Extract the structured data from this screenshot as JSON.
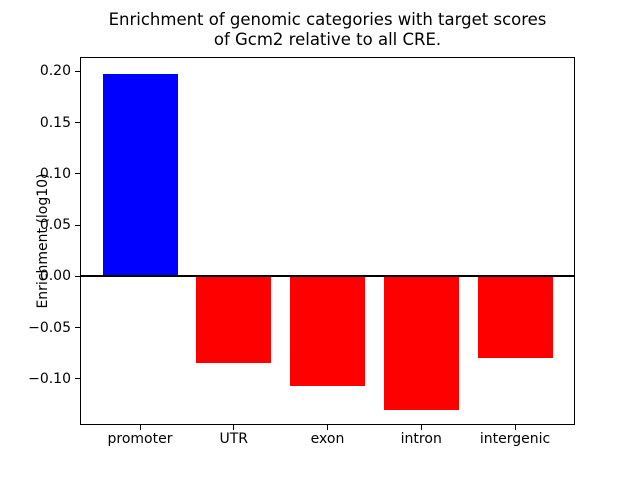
{
  "title": {
    "line1": "Enrichment of genomic categories with target scores",
    "line2": "of Gcm2 relative to all CRE."
  },
  "chart_data": {
    "type": "bar",
    "title": "Enrichment of genomic categories with target scores\nof Gcm2 relative to all CRE.",
    "xlabel": "",
    "ylabel": "Enrichment (log10)",
    "categories": [
      "promoter",
      "UTR",
      "exon",
      "intron",
      "intergenic"
    ],
    "values": [
      0.197,
      -0.085,
      -0.107,
      -0.13,
      -0.08
    ],
    "bar_colors": [
      "#0000ff",
      "#ff0000",
      "#ff0000",
      "#ff0000",
      "#ff0000"
    ],
    "positive_color": "#0000ff",
    "negative_color": "#ff0000",
    "ylim": [
      -0.145,
      0.214
    ],
    "yticks": [
      0.2,
      0.15,
      0.1,
      0.05,
      0.0,
      -0.05,
      -0.1
    ],
    "ytick_labels": [
      "0.20",
      "0.15",
      "0.10",
      "0.05",
      "0.00",
      "−0.05",
      "−0.10"
    ],
    "zero_line": true,
    "grid": false,
    "legend": null,
    "background_color": "#ffffff"
  }
}
